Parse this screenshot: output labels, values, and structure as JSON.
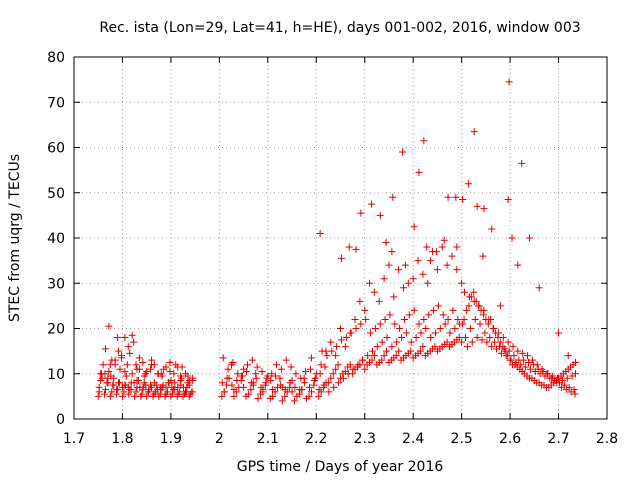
{
  "chart_data": {
    "type": "scatter",
    "title": "Rec. ista (Lon=29, Lat=41, h=HE), days 001-002, 2016, window 003",
    "xlabel": "GPS time / Days of year 2016",
    "ylabel": "STEC from uqrg / TECUs",
    "xlim": [
      1.7,
      2.8
    ],
    "ylim": [
      0,
      80
    ],
    "xticks": [
      "1.7",
      "1.8",
      "1.9",
      "2",
      "2.1",
      "2.2",
      "2.3",
      "2.4",
      "2.5",
      "2.6",
      "2.7",
      "2.8"
    ],
    "yticks": [
      "0",
      "10",
      "20",
      "30",
      "40",
      "50",
      "60",
      "70",
      "80"
    ],
    "grid": true,
    "marker": "plus",
    "color": "#e00000",
    "series": [
      {
        "x": [
          1.75,
          1.752,
          1.755,
          1.757,
          1.76,
          1.763,
          1.765,
          1.768,
          1.77,
          1.772,
          1.775,
          1.778,
          1.78,
          1.782,
          1.785,
          1.788,
          1.79,
          1.792,
          1.795,
          1.798,
          1.8,
          1.803,
          1.805,
          1.808,
          1.81,
          1.813,
          1.815,
          1.818,
          1.82,
          1.823,
          1.825,
          1.828,
          1.83,
          1.833,
          1.835,
          1.838,
          1.84,
          1.843,
          1.845,
          1.848,
          1.85,
          1.853,
          1.855,
          1.858,
          1.86,
          1.863,
          1.865,
          1.868,
          1.87,
          1.873,
          1.875,
          1.878,
          1.88,
          1.883,
          1.885,
          1.888,
          1.89,
          1.893,
          1.895,
          1.898,
          1.9,
          1.903,
          1.905,
          1.908,
          1.91,
          1.913,
          1.915,
          1.918,
          1.92,
          1.923,
          1.925,
          1.928,
          1.93,
          1.933,
          1.935,
          1.938,
          1.94,
          1.943,
          1.945,
          1.752,
          1.758,
          1.764,
          1.77,
          1.776,
          1.782,
          1.788,
          1.794,
          1.8,
          1.806,
          1.812,
          1.818,
          1.824,
          1.83,
          1.836,
          1.842,
          1.848,
          1.854,
          1.86,
          1.866,
          1.872,
          1.878,
          1.884,
          1.89,
          1.896,
          1.902,
          1.908,
          1.914,
          1.92,
          1.926,
          1.932,
          1.938,
          1.944,
          1.755,
          1.765,
          1.772,
          1.778,
          1.785,
          1.792,
          1.798,
          1.805,
          1.812,
          1.82,
          1.828,
          1.835,
          1.842,
          1.85,
          1.858,
          1.866,
          1.874,
          1.882,
          1.89,
          1.898,
          1.906,
          1.914,
          1.922,
          1.93,
          1.938,
          1.945,
          1.775,
          1.79,
          1.805,
          1.815,
          1.83,
          1.845,
          1.86,
          1.88,
          1.9,
          1.92,
          1.935,
          2.005,
          2.01,
          2.015,
          2.02,
          2.025,
          2.03,
          2.035,
          2.04,
          2.045,
          2.05,
          2.055,
          2.06,
          2.065,
          2.07,
          2.075,
          2.08,
          2.085,
          2.09,
          2.095,
          2.1,
          2.105,
          2.11,
          2.115,
          2.12,
          2.125,
          2.13,
          2.135,
          2.14,
          2.145,
          2.15,
          2.155,
          2.16,
          2.165,
          2.17,
          2.175,
          2.18,
          2.185,
          2.19,
          2.195,
          2.2,
          2.205,
          2.21,
          2.215,
          2.22,
          2.008,
          2.018,
          2.028,
          2.038,
          2.048,
          2.058,
          2.068,
          2.078,
          2.088,
          2.098,
          2.108,
          2.118,
          2.128,
          2.138,
          2.148,
          2.158,
          2.168,
          2.178,
          2.188,
          2.198,
          2.208,
          2.218,
          2.006,
          2.016,
          2.026,
          2.036,
          2.046,
          2.056,
          2.066,
          2.076,
          2.086,
          2.096,
          2.106,
          2.116,
          2.126,
          2.136,
          2.146,
          2.156,
          2.166,
          2.176,
          2.186,
          2.196,
          2.206,
          2.216,
          2.01,
          2.03,
          2.05,
          2.07,
          2.09,
          2.11,
          2.13,
          2.15,
          2.17,
          2.19,
          2.21,
          2.225,
          2.23,
          2.235,
          2.24,
          2.245,
          2.25,
          2.255,
          2.26,
          2.265,
          2.27,
          2.275,
          2.28,
          2.285,
          2.29,
          2.295,
          2.3,
          2.305,
          2.31,
          2.315,
          2.32,
          2.325,
          2.33,
          2.335,
          2.34,
          2.345,
          2.35,
          2.355,
          2.36,
          2.365,
          2.37,
          2.375,
          2.38,
          2.385,
          2.39,
          2.395,
          2.4,
          2.405,
          2.41,
          2.415,
          2.42,
          2.425,
          2.43,
          2.435,
          2.44,
          2.445,
          2.45,
          2.455,
          2.46,
          2.465,
          2.47,
          2.475,
          2.48,
          2.485,
          2.49,
          2.495,
          2.5,
          2.222,
          2.232,
          2.242,
          2.252,
          2.262,
          2.272,
          2.282,
          2.292,
          2.302,
          2.312,
          2.322,
          2.332,
          2.342,
          2.352,
          2.362,
          2.372,
          2.382,
          2.392,
          2.402,
          2.412,
          2.422,
          2.432,
          2.442,
          2.452,
          2.462,
          2.472,
          2.482,
          2.492,
          2.502,
          2.226,
          2.236,
          2.246,
          2.256,
          2.266,
          2.276,
          2.286,
          2.296,
          2.306,
          2.316,
          2.326,
          2.336,
          2.346,
          2.356,
          2.366,
          2.376,
          2.386,
          2.396,
          2.406,
          2.416,
          2.426,
          2.436,
          2.446,
          2.456,
          2.466,
          2.476,
          2.486,
          2.496,
          2.212,
          2.22,
          2.23,
          2.24,
          2.25,
          2.26,
          2.27,
          2.28,
          2.29,
          2.3,
          2.31,
          2.32,
          2.33,
          2.34,
          2.35,
          2.36,
          2.37,
          2.38,
          2.39,
          2.4,
          2.41,
          2.42,
          2.43,
          2.44,
          2.45,
          2.46,
          2.47,
          2.48,
          2.49,
          2.5,
          2.505,
          2.51,
          2.515,
          2.52,
          2.525,
          2.53,
          2.535,
          2.54,
          2.545,
          2.55,
          2.555,
          2.56,
          2.565,
          2.57,
          2.575,
          2.58,
          2.585,
          2.59,
          2.595,
          2.6,
          2.605,
          2.61,
          2.615,
          2.62,
          2.625,
          2.63,
          2.635,
          2.64,
          2.645,
          2.65,
          2.655,
          2.66,
          2.665,
          2.67,
          2.675,
          2.68,
          2.685,
          2.69,
          2.695,
          2.7,
          2.705,
          2.71,
          2.715,
          2.72,
          2.725,
          2.73,
          2.735,
          2.508,
          2.518,
          2.528,
          2.538,
          2.548,
          2.558,
          2.568,
          2.578,
          2.588,
          2.598,
          2.608,
          2.618,
          2.628,
          2.638,
          2.648,
          2.658,
          2.668,
          2.678,
          2.688,
          2.698,
          2.708,
          2.718,
          2.728,
          2.735,
          2.512,
          2.522,
          2.532,
          2.542,
          2.552,
          2.562,
          2.572,
          2.582,
          2.592,
          2.602,
          2.612,
          2.622,
          2.632,
          2.642,
          2.652,
          2.662,
          2.672,
          2.682,
          2.692,
          2.702,
          2.712,
          2.722,
          2.732,
          2.506,
          2.516,
          2.526,
          2.536,
          2.546,
          2.556,
          2.566,
          2.576,
          2.586,
          2.596,
          2.606,
          2.616,
          2.626,
          2.636,
          2.646,
          2.656,
          2.666,
          2.676,
          2.686,
          2.696,
          2.706,
          2.716,
          2.726,
          2.734,
          2.598,
          2.526,
          2.422,
          2.378,
          2.624,
          2.412,
          2.358,
          2.596,
          2.488,
          2.502,
          2.546,
          2.332,
          2.292,
          2.208,
          2.252,
          2.282,
          2.344,
          2.384,
          2.428,
          2.464,
          2.514,
          2.562,
          2.604,
          2.64,
          2.314,
          2.402,
          2.472,
          2.532,
          2.58,
          2.448,
          2.268,
          2.356,
          2.436,
          2.49,
          2.544,
          2.616,
          2.66,
          2.7,
          2.72
        ],
        "y": [
          5.0,
          6.0,
          8.5,
          10.0,
          12.0,
          5.5,
          6.5,
          8.0,
          9.0,
          10.5,
          5.0,
          6.0,
          7.5,
          9.0,
          13.0,
          5.5,
          6.5,
          8.0,
          11.0,
          14.0,
          5.0,
          6.0,
          7.5,
          9.5,
          12.0,
          5.5,
          6.5,
          8.0,
          10.0,
          17.0,
          5.0,
          6.0,
          7.0,
          8.5,
          11.0,
          5.0,
          5.5,
          7.0,
          8.0,
          10.0,
          5.0,
          6.0,
          6.5,
          7.5,
          13.0,
          5.0,
          5.5,
          6.0,
          7.5,
          10.0,
          5.0,
          5.5,
          6.5,
          7.0,
          11.0,
          5.0,
          5.5,
          6.0,
          8.0,
          10.5,
          5.0,
          5.5,
          6.5,
          8.0,
          12.0,
          5.0,
          5.5,
          6.0,
          7.5,
          11.5,
          5.0,
          5.5,
          6.0,
          7.0,
          9.5,
          5.0,
          5.5,
          6.0,
          8.5,
          7.0,
          9.0,
          10.0,
          8.0,
          9.5,
          7.5,
          6.5,
          8.0,
          7.0,
          7.5,
          7.0,
          6.5,
          8.0,
          8.5,
          7.0,
          6.5,
          7.5,
          6.0,
          7.0,
          8.0,
          6.5,
          7.0,
          7.5,
          7.0,
          8.0,
          7.0,
          6.5,
          7.0,
          8.5,
          7.0,
          6.0,
          7.5,
          6.0,
          10.0,
          15.5,
          20.5,
          13.0,
          12.0,
          15.0,
          13.5,
          18.0,
          16.0,
          18.5,
          12.0,
          13.5,
          12.5,
          10.5,
          11.0,
          12.0,
          10.0,
          9.5,
          11.5,
          12.5,
          10.0,
          11.5,
          9.0,
          10.0,
          8.5,
          9.0,
          12.0,
          18.0,
          10.5,
          14.5,
          11.0,
          9.5,
          12.0,
          10.0,
          8.5,
          9.5,
          8.0,
          5.0,
          6.0,
          7.5,
          9.0,
          12.0,
          5.0,
          6.0,
          7.0,
          8.5,
          11.0,
          5.0,
          5.5,
          6.5,
          8.0,
          10.0,
          4.5,
          5.5,
          6.5,
          7.5,
          9.5,
          4.5,
          5.0,
          6.0,
          7.0,
          9.0,
          4.0,
          5.0,
          6.0,
          7.0,
          8.5,
          4.0,
          5.0,
          5.5,
          6.5,
          9.0,
          4.5,
          5.0,
          6.0,
          7.5,
          10.0,
          5.0,
          6.0,
          7.0,
          8.0,
          13.5,
          11.0,
          12.5,
          10.0,
          9.5,
          12.0,
          13.0,
          11.5,
          10.5,
          9.0,
          10.0,
          12.0,
          11.0,
          13.0,
          11.5,
          10.0,
          9.0,
          10.5,
          11.0,
          9.0,
          10.0,
          11.5,
          8.0,
          9.0,
          7.5,
          8.5,
          9.5,
          10.5,
          8.0,
          9.0,
          7.0,
          8.0,
          8.5,
          9.5,
          7.5,
          6.5,
          8.0,
          7.0,
          6.5,
          8.0,
          7.0,
          8.5,
          6.5,
          7.5,
          6.0,
          6.5,
          7.0,
          7.5,
          6.0,
          6.5,
          7.0,
          6.0,
          6.5,
          13.5,
          12.0,
          8.0,
          9.0,
          10.0,
          11.0,
          12.0,
          9.0,
          10.0,
          10.5,
          11.5,
          12.0,
          10.0,
          11.0,
          11.5,
          12.0,
          13.0,
          11.0,
          12.0,
          12.5,
          13.0,
          14.0,
          12.0,
          12.5,
          13.0,
          14.0,
          15.0,
          12.5,
          13.0,
          13.5,
          14.0,
          15.0,
          13.0,
          13.5,
          14.0,
          14.5,
          15.0,
          13.5,
          14.0,
          14.5,
          15.0,
          16.0,
          14.0,
          14.5,
          15.0,
          15.5,
          16.0,
          15.0,
          15.5,
          16.0,
          16.5,
          17.0,
          16.0,
          16.5,
          17.0,
          17.5,
          18.0,
          17.0,
          14.0,
          15.0,
          16.0,
          17.5,
          18.0,
          19.0,
          20.0,
          21.0,
          22.0,
          19.0,
          20.0,
          21.0,
          22.0,
          23.0,
          21.0,
          20.0,
          22.0,
          23.0,
          24.0,
          21.0,
          22.0,
          23.0,
          24.0,
          25.0,
          23.0,
          22.0,
          24.0,
          22.0,
          21.0,
          6.0,
          7.0,
          8.0,
          9.0,
          10.0,
          11.0,
          12.0,
          13.0,
          14.0,
          15.0,
          16.0,
          17.0,
          18.0,
          16.0,
          17.0,
          18.0,
          19.0,
          17.0,
          18.0,
          19.0,
          20.0,
          18.0,
          19.0,
          20.0,
          21.0,
          19.0,
          20.0,
          21.0,
          15.0,
          15.0,
          17.0,
          14.0,
          20.0,
          16.0,
          19.0,
          22.0,
          26.0,
          24.0,
          30.0,
          28.0,
          26.0,
          31.0,
          34.0,
          27.0,
          33.0,
          29.0,
          30.0,
          31.0,
          35.0,
          32.0,
          30.0,
          37.0,
          33.0,
          38.0,
          34.0,
          36.0,
          33.0,
          30.0,
          22.0,
          24.0,
          25.0,
          27.0,
          28.0,
          26.0,
          25.0,
          24.0,
          23.0,
          22.0,
          21.0,
          22.0,
          20.0,
          19.0,
          18.0,
          17.0,
          16.0,
          15.0,
          14.0,
          13.0,
          12.0,
          12.0,
          11.5,
          11.0,
          10.5,
          10.0,
          9.5,
          9.0,
          9.0,
          8.5,
          8.0,
          8.0,
          7.5,
          7.5,
          7.0,
          7.0,
          7.5,
          8.0,
          8.5,
          9.0,
          9.5,
          10.0,
          10.5,
          11.0,
          11.5,
          12.0,
          12.5,
          18.0,
          20.0,
          22.0,
          21.0,
          19.0,
          18.0,
          17.0,
          16.0,
          15.5,
          15.0,
          14.0,
          13.0,
          13.0,
          12.5,
          12.0,
          11.0,
          10.5,
          10.0,
          9.5,
          9.0,
          8.5,
          9.0,
          9.5,
          10.0,
          16.0,
          17.0,
          18.0,
          17.5,
          17.0,
          16.0,
          15.5,
          14.5,
          14.0,
          13.0,
          12.5,
          12.0,
          11.5,
          11.0,
          10.5,
          10.0,
          9.5,
          9.0,
          8.5,
          8.0,
          7.5,
          7.0,
          6.5,
          28.0,
          27.0,
          26.0,
          25.0,
          24.0,
          22.0,
          20.0,
          19.0,
          18.0,
          17.0,
          16.0,
          15.0,
          14.5,
          14.0,
          13.0,
          12.0,
          11.0,
          10.0,
          9.0,
          8.0,
          7.0,
          6.5,
          6.0,
          5.5,
          74.5,
          63.5,
          61.5,
          59.0,
          56.5,
          54.5,
          49.0,
          48.5,
          49.0,
          48.5,
          46.5,
          45.0,
          45.5,
          41.0,
          35.5,
          37.5,
          39.0,
          34.0,
          38.0,
          39.5,
          52.0,
          42.0,
          40.0,
          40.0,
          47.5,
          42.5,
          49.0,
          47.0,
          25.0,
          37.0,
          38.0,
          37.0,
          35.0,
          38.0,
          36.0,
          34.0,
          29.0,
          19.0,
          14.0
        ]
      }
    ]
  }
}
